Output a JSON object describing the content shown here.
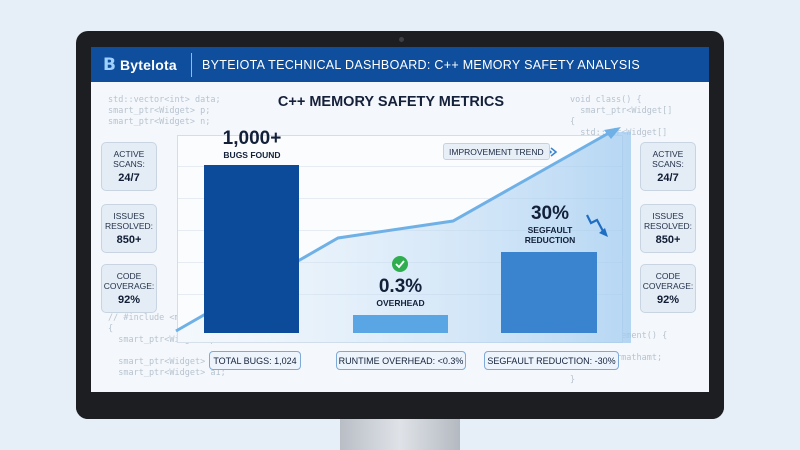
{
  "header": {
    "logo_mark": "B",
    "logo_text": "Bytelota",
    "title": "BYTEIOTA TECHNICAL DASHBOARD: C++ MEMORY SAFETY ANALYSIS"
  },
  "chart": {
    "title": "C++ MEMORY SAFETY METRICS",
    "trend_label": "IMPROVEMENT TREND",
    "bars": [
      {
        "big": "1,000+",
        "caption": "BUGS FOUND",
        "value": 1024,
        "color": "#0c4b9a"
      },
      {
        "big": "0.3%",
        "caption": "OVERHEAD",
        "value": 0.3,
        "color": "#5aa6e4"
      },
      {
        "big": "30%",
        "caption": "SEGFAULT REDUCTION",
        "value": 30,
        "color": "#3a84cf"
      }
    ]
  },
  "left_stats": [
    {
      "label": "ACTIVE SCANS:",
      "value": "24/7"
    },
    {
      "label": "ISSUES RESOLVED:",
      "value": "850+"
    },
    {
      "label": "CODE COVERAGE:",
      "value": "92%"
    }
  ],
  "right_stats": [
    {
      "label": "ACTIVE SCANS:",
      "value": "24/7"
    },
    {
      "label": "ISSUES RESOLVED:",
      "value": "850+"
    },
    {
      "label": "CODE COVERAGE:",
      "value": "92%"
    }
  ],
  "pills": {
    "total": "TOTAL BUGS: 1,024",
    "overhead": "RUNTIME OVERHEAD: <0.3%",
    "segfault": "SEGFAULT REDUCTION: -30%"
  },
  "code": {
    "top_left": "std::vector<int> data;\nsmart_ptr<Widget> p;\nsmart_ptr<Widget> n;",
    "top_right": "void class() {\n  smart_ptr<Widget[]\n{\n  std::ptr<Widget[]\n}",
    "bottom_left": "// #include <memory>\n{\n  smart_ptr<Widget> p;\n\n  smart_ptr<Widget> n;\n  smart_ptr<Widget> a1;",
    "bottom_right": "void removement() {\n\n  #mdnotdrmathamt;\n\n}"
  },
  "colors": {
    "header": "#0e4e9c",
    "trend_line": "#6fb1e6",
    "check": "#2fae4f"
  }
}
